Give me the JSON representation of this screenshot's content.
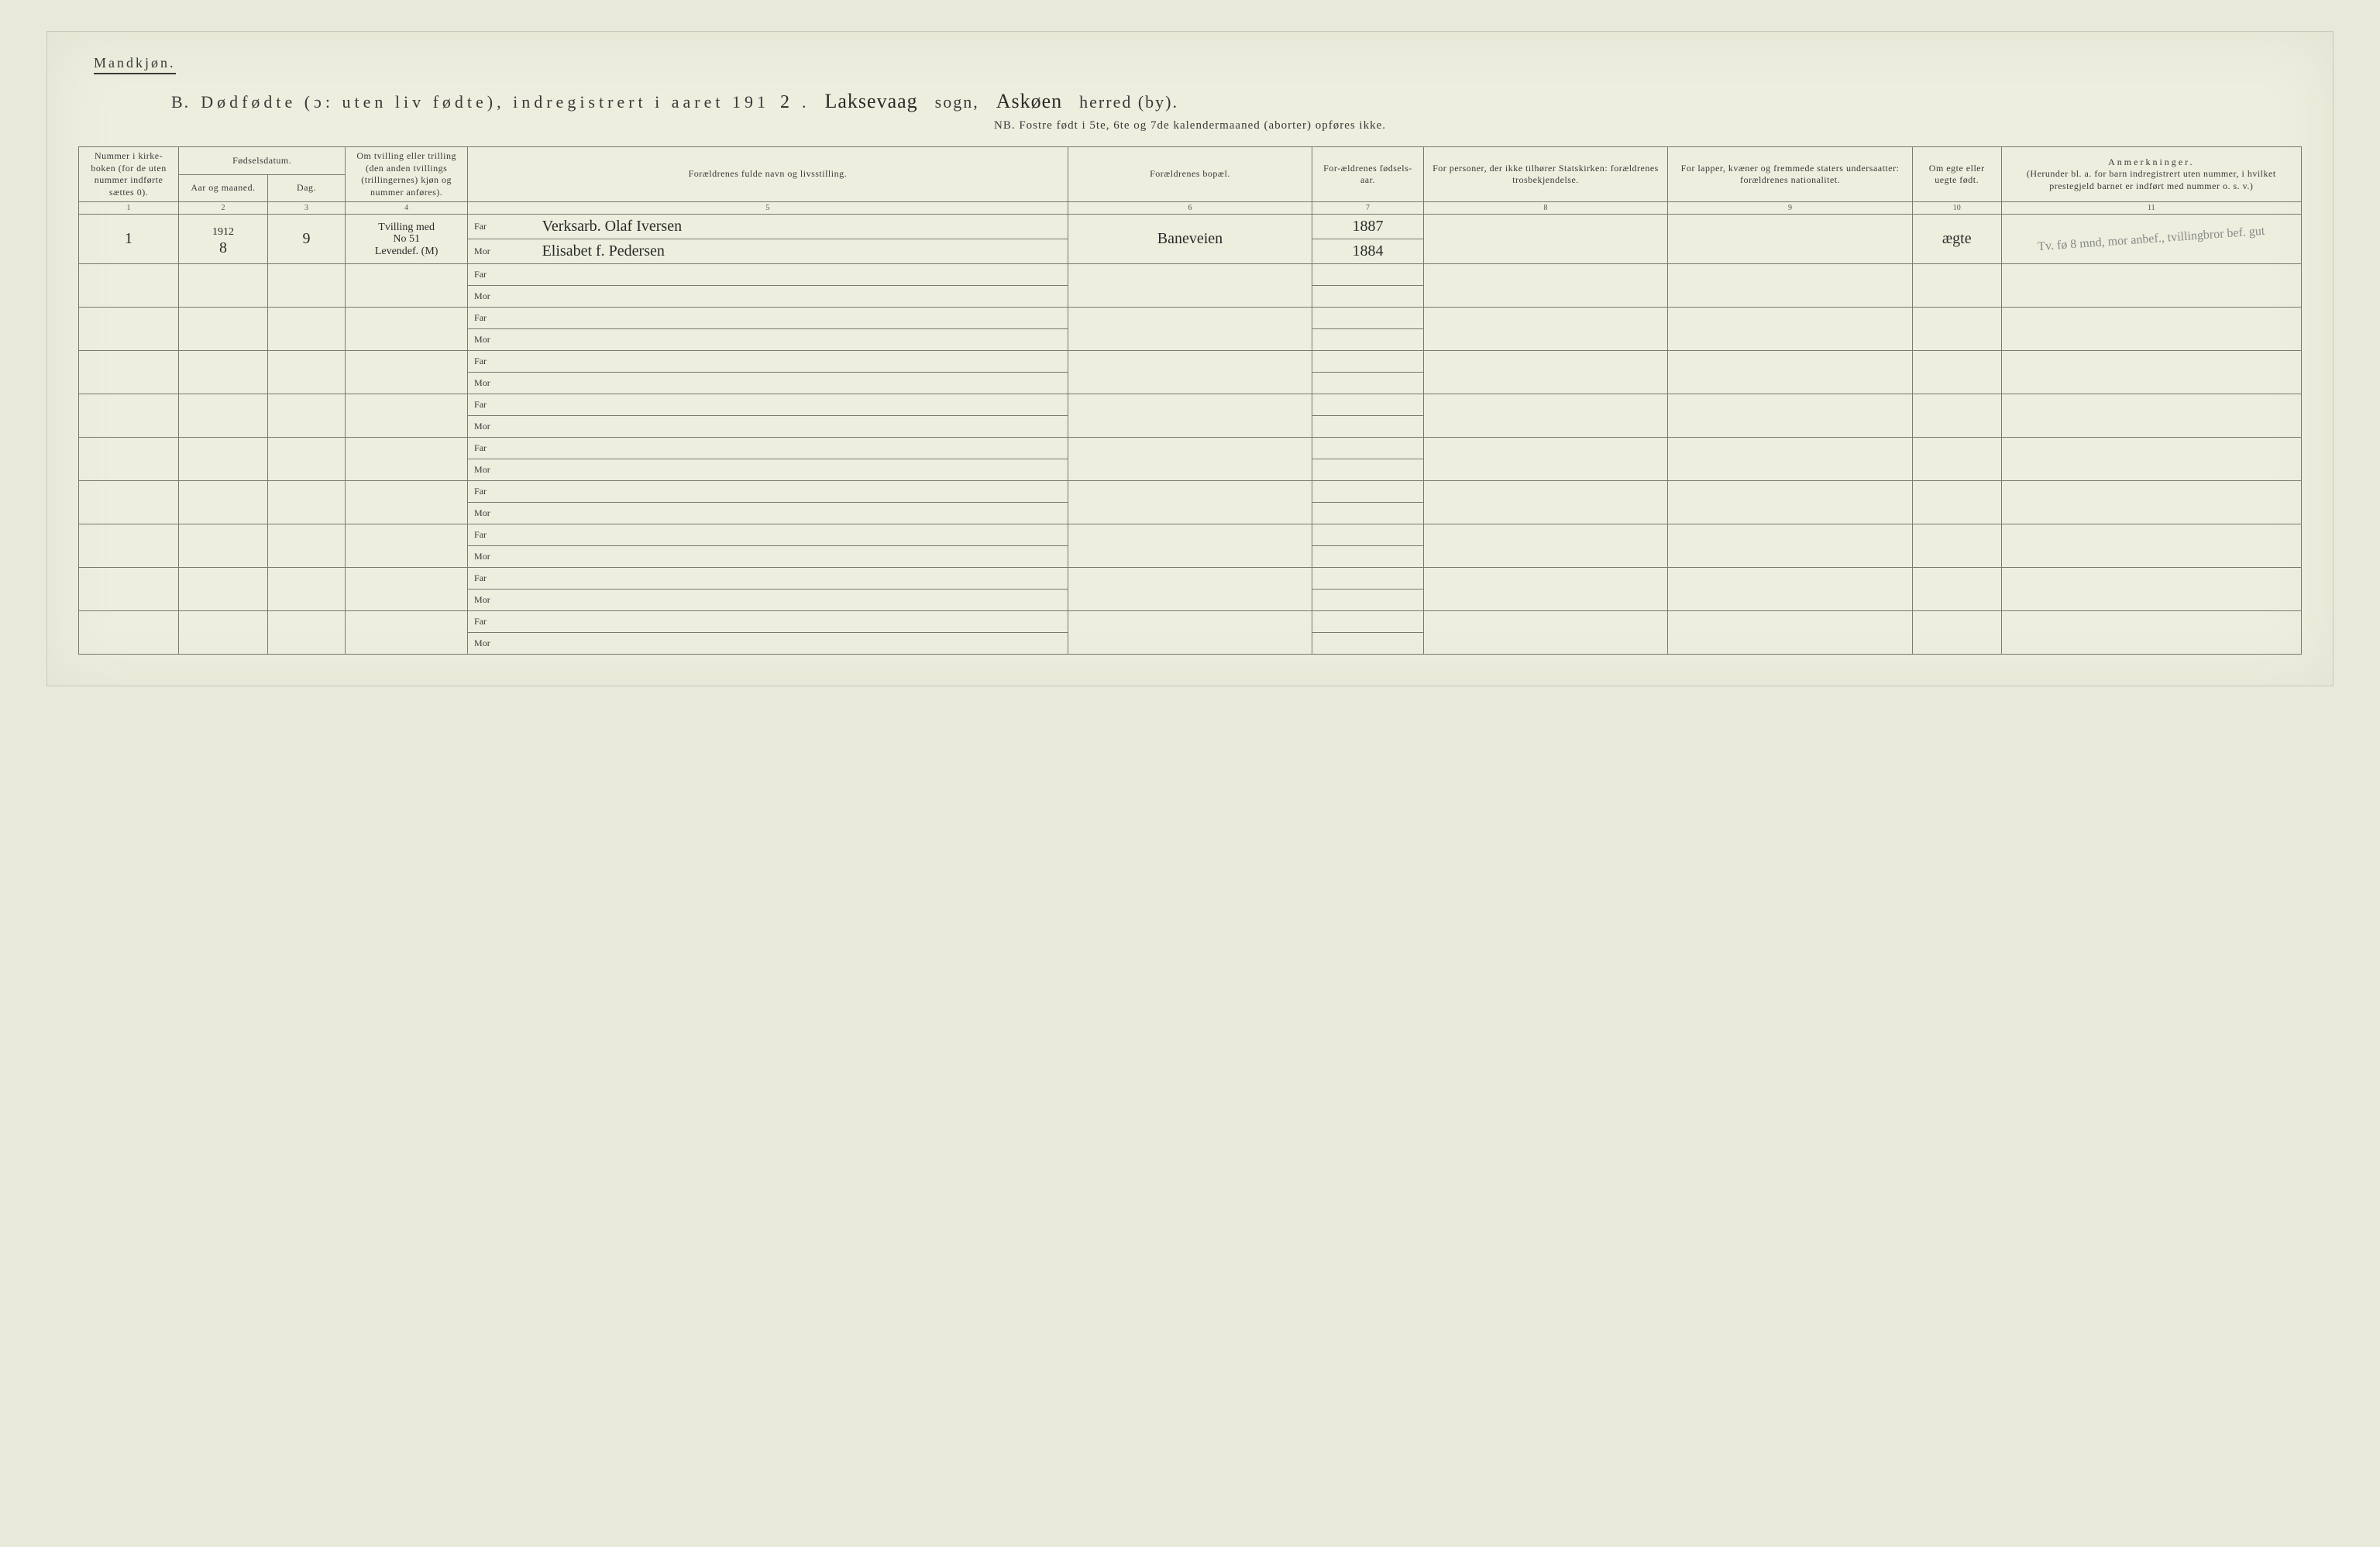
{
  "page": {
    "gender_label": "Mandkjøn.",
    "title_prefix": "B.",
    "title_main": "Dødfødte (ɔ: uten liv fødte), indregistrert i aaret 191",
    "year_suffix_hw": "2",
    "period": ".",
    "sogn_hw": "Laksevaag",
    "sogn_label": "sogn,",
    "herred_hw": "Askøen",
    "herred_label": "herred (by).",
    "nb_line": "NB.  Fostre født i 5te, 6te og 7de kalendermaaned (aborter) opføres ikke."
  },
  "headers": {
    "c1": "Nummer i kirke-boken (for de uten nummer indførte sættes 0).",
    "c2_group": "Fødselsdatum.",
    "c2a": "Aar og maaned.",
    "c2b": "Dag.",
    "c3": "Om tvilling eller trilling (den anden tvillings (trillingernes) kjøn og nummer anføres).",
    "c4": "Forældrenes fulde navn og livsstilling.",
    "c5": "Forældrenes bopæl.",
    "c6": "For-ældrenes fødsels-aar.",
    "c7": "For personer, der ikke tilhører Statskirken: forældrenes trosbekjendelse.",
    "c8": "For lapper, kvæner og fremmede staters undersaatter: forældrenes nationalitet.",
    "c9": "Om egte eller uegte født.",
    "c10_title": "Anmerkninger.",
    "c10_sub": "(Herunder bl. a. for barn indregistrert uten nummer, i hvilket prestegjeld barnet er indført med nummer o. s. v.)"
  },
  "colnums": [
    "1",
    "2",
    "3",
    "4",
    "5",
    "6",
    "7",
    "8",
    "9",
    "10",
    "11"
  ],
  "parent_labels": {
    "far": "Far",
    "mor": "Mor"
  },
  "entry": {
    "num": "1",
    "year": "1912",
    "month": "8",
    "day": "9",
    "twin_note_l1": "Tvilling med",
    "twin_note_l2": "No 51",
    "twin_note_l3": "Levendef. (M)",
    "far_name": "Verksarb.  Olaf  Iversen",
    "mor_name": "Elisabet  f.  Pedersen",
    "bopal": "Baneveien",
    "far_year": "1887",
    "mor_year": "1884",
    "egte": "ægte",
    "annotation": "Tv. fø 8 mnd, mor anbef., tvillingbror bef. gut"
  },
  "columns": {
    "w1": "4.5%",
    "w2a": "4%",
    "w2b": "3.5%",
    "w3": "5.5%",
    "w4lab": "3%",
    "w4": "24%",
    "w5": "11%",
    "w6": "5%",
    "w7": "11%",
    "w8": "11%",
    "w9": "4%",
    "w10": "13.5%"
  },
  "style": {
    "bg": "#edeede",
    "border": "#7a7a6a",
    "text": "#3a3a3a",
    "hw": "#2a2a2a",
    "faint_hw": "#888"
  },
  "empty_rows": 9
}
